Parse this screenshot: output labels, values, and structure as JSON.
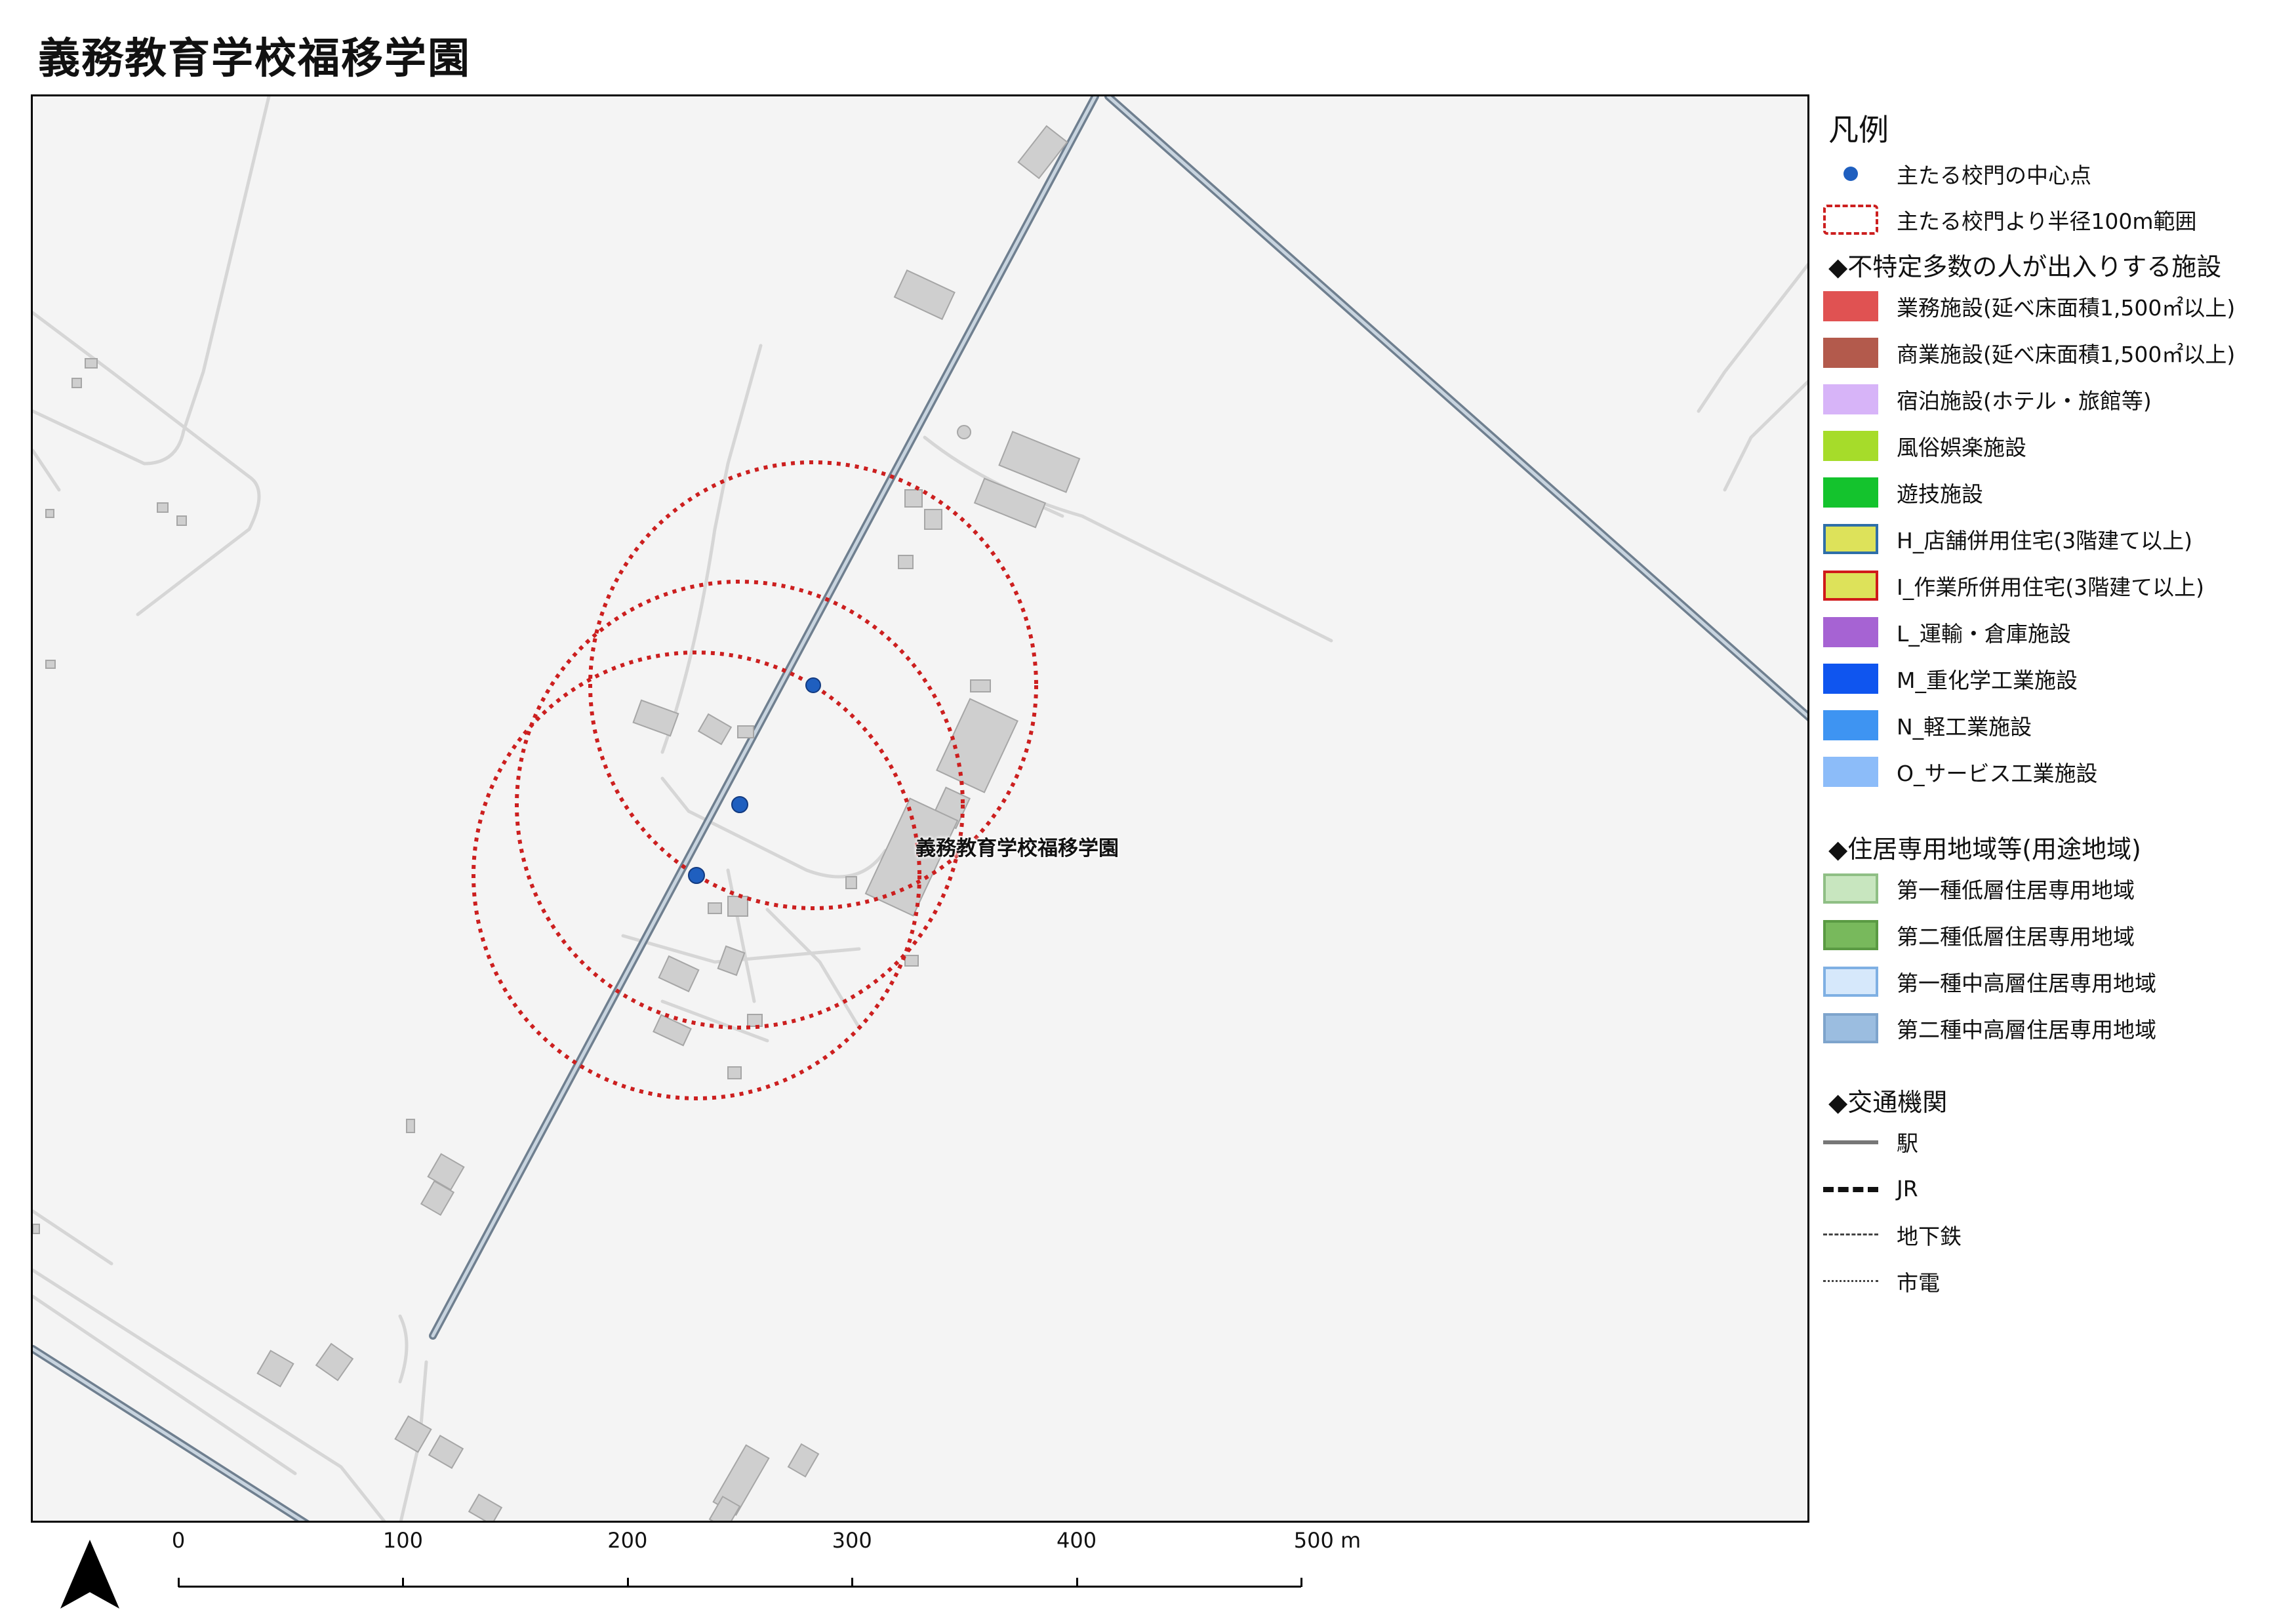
{
  "title": "義務教育学校福移学園",
  "map": {
    "school_label": "義務教育学校福移学園"
  },
  "legend": {
    "title": "凡例",
    "gate_point": {
      "label": "主たる校門の中心点",
      "color": "#1f5fbf",
      "icon": "blue-dot-icon"
    },
    "gate_radius": {
      "label": "主たる校門より半径100m範囲",
      "color": "#cc1f1f",
      "icon": "red-dashed-rect-icon"
    },
    "facilities_heading": "◆不特定多数の人が出入りする施設",
    "facilities": [
      {
        "label": "業務施設(延べ床面積1,500㎡以上)",
        "fill": "#e05252",
        "stroke": "#e05252"
      },
      {
        "label": "商業施設(延べ床面積1,500㎡以上)",
        "fill": "#b35a4c",
        "stroke": "#b35a4c"
      },
      {
        "label": "宿泊施設(ホテル・旅館等)",
        "fill": "#d7b4f8",
        "stroke": "#d7b4f8"
      },
      {
        "label": "風俗娯楽施設",
        "fill": "#a6dc2a",
        "stroke": "#a6dc2a"
      },
      {
        "label": "遊技施設",
        "fill": "#14c32d",
        "stroke": "#14c32d"
      },
      {
        "label": "H_店舗併用住宅(3階建て以上)",
        "fill": "#dde25a",
        "stroke": "#2f6fa8"
      },
      {
        "label": "I_作業所併用住宅(3階建て以上)",
        "fill": "#dde25a",
        "stroke": "#d01a1a"
      },
      {
        "label": "L_運輸・倉庫施設",
        "fill": "#a663d3",
        "stroke": "#a663d3"
      },
      {
        "label": "M_重化学工業施設",
        "fill": "#0f55ef",
        "stroke": "#0f55ef"
      },
      {
        "label": "N_軽工業施設",
        "fill": "#3e94f2",
        "stroke": "#3e94f2"
      },
      {
        "label": "O_サービス工業施設",
        "fill": "#8cbcf9",
        "stroke": "#8cbcf9"
      }
    ],
    "zoning_heading": "◆住居専用地域等(用途地域)",
    "zoning": [
      {
        "label": "第一種低層住居専用地域",
        "fill": "#c8e6bf",
        "stroke": "#8fbf85"
      },
      {
        "label": "第二種低層住居専用地域",
        "fill": "#78b95c",
        "stroke": "#5a9a43"
      },
      {
        "label": "第一種中高層住居専用地域",
        "fill": "#d6e8fb",
        "stroke": "#7fb0e3"
      },
      {
        "label": "第二種中高層住居専用地域",
        "fill": "#9bbde0",
        "stroke": "#7ea4cc"
      }
    ],
    "transport_heading": "◆交通機関",
    "transport": [
      {
        "label": "駅",
        "style": "solid-thick"
      },
      {
        "label": "JR",
        "style": "jr-dashed"
      },
      {
        "label": "地下鉄",
        "style": "long-dashed"
      },
      {
        "label": "市電",
        "style": "short-dotted"
      }
    ]
  },
  "north_arrow": {
    "icon": "north-arrow-icon"
  },
  "scale_bar": {
    "ticks": [
      "0",
      "100",
      "200",
      "300",
      "400",
      "500 m"
    ]
  }
}
